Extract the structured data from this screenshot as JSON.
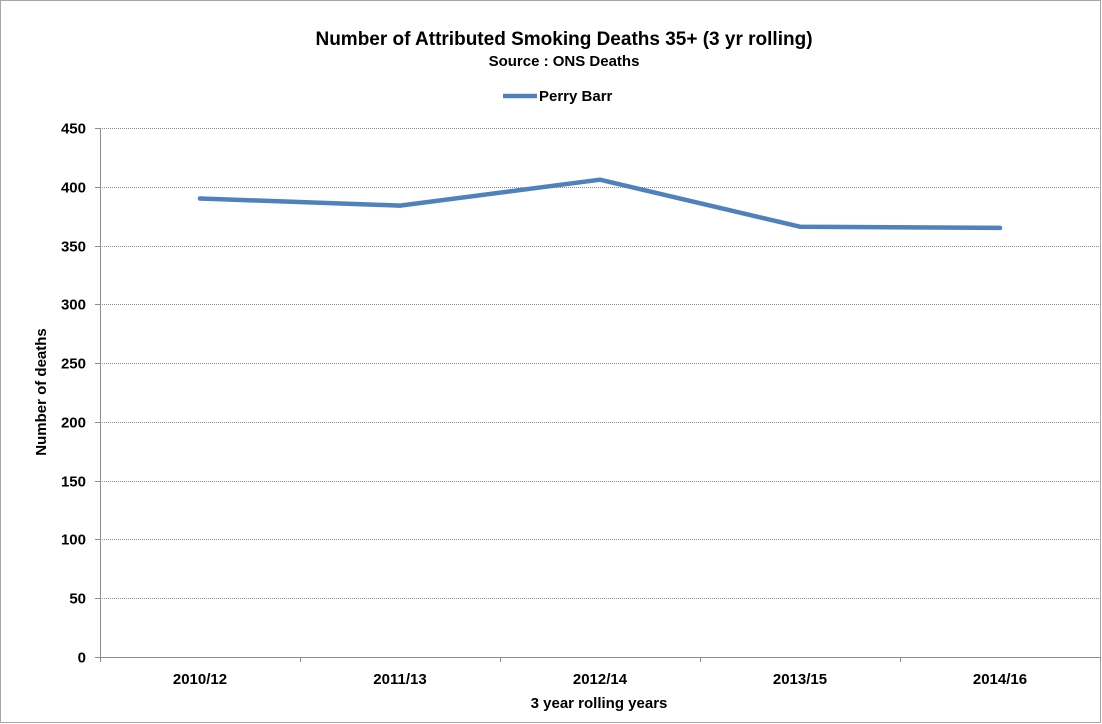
{
  "chart_data": {
    "type": "line",
    "title": "Number of Attributed Smoking Deaths 35+ (3 yr rolling)",
    "subtitle": "Source : ONS Deaths",
    "xlabel": "3 year rolling years",
    "ylabel": "Number of deaths",
    "categories": [
      "2010/12",
      "2011/13",
      "2012/14",
      "2013/15",
      "2014/16"
    ],
    "series": [
      {
        "name": "Perry Barr",
        "values": [
          390,
          384,
          406,
          366,
          365
        ],
        "color": "#4f81bd"
      }
    ],
    "ylim": [
      0,
      450
    ],
    "yticks": [
      0,
      50,
      100,
      150,
      200,
      250,
      300,
      350,
      400,
      450
    ],
    "grid": true,
    "legend_position": "top"
  }
}
